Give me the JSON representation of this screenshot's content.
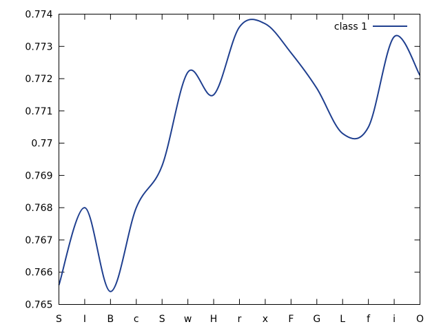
{
  "chart_data": {
    "type": "line",
    "categories": [
      "S",
      "I",
      "B",
      "c",
      "S",
      "w",
      "H",
      "r",
      "x",
      "F",
      "G",
      "L",
      "f",
      "i",
      "O"
    ],
    "series": [
      {
        "name": "class 1",
        "color": "#1f3f8f",
        "values": [
          0.7656,
          0.768,
          0.7654,
          0.768,
          0.7693,
          0.7722,
          0.7715,
          0.7736,
          0.7737,
          0.7728,
          0.7717,
          0.7703,
          0.7705,
          0.7733,
          0.7721
        ]
      }
    ],
    "ylim": [
      0.765,
      0.774
    ],
    "yticks": [
      "0.765",
      "0.766",
      "0.767",
      "0.768",
      "0.769",
      "0.77",
      "0.771",
      "0.772",
      "0.773",
      "0.774"
    ],
    "grid": false,
    "legend_position": "top-right",
    "title": "",
    "xlabel": "",
    "ylabel": ""
  }
}
